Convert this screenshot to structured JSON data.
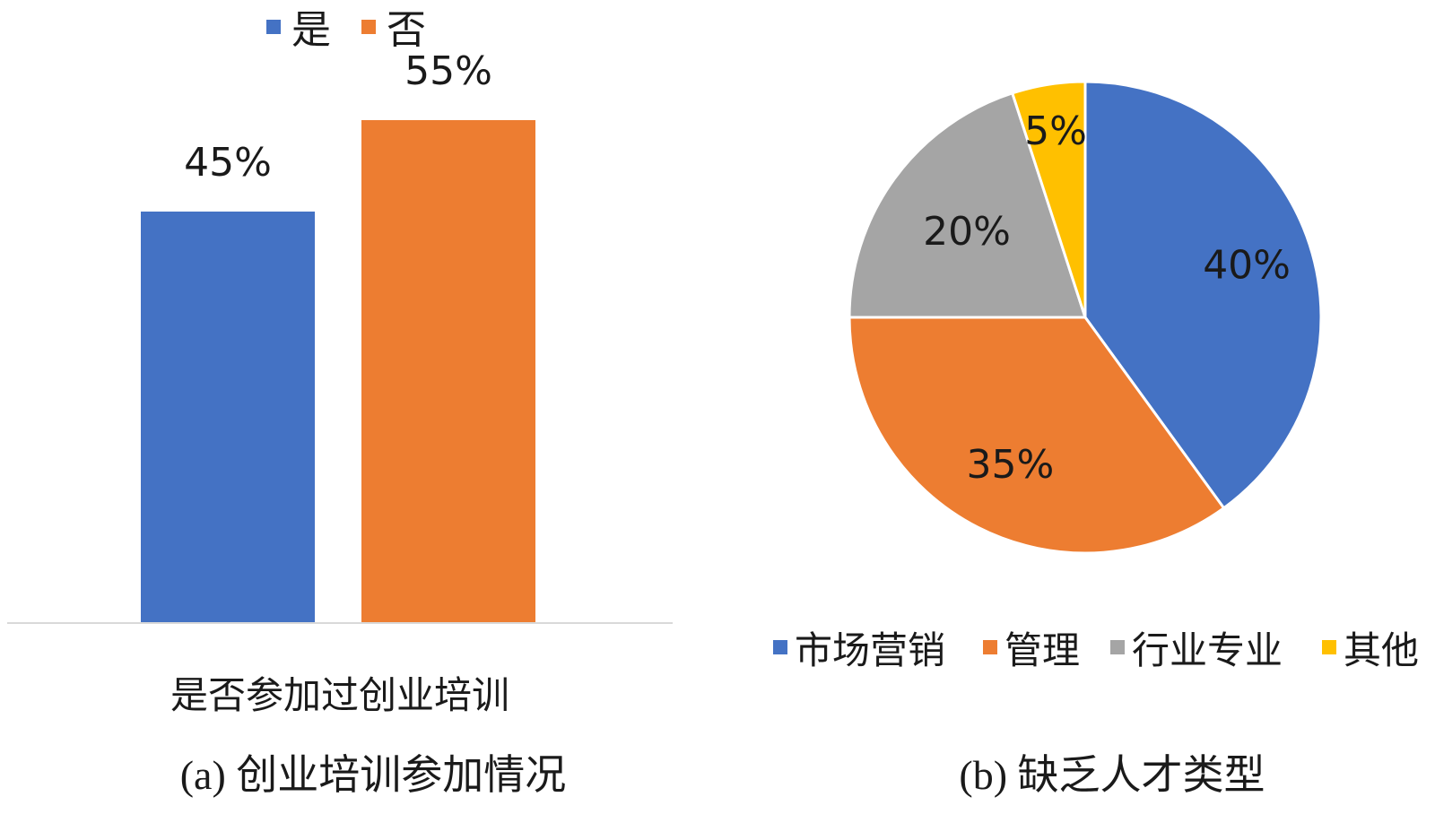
{
  "chart_data": [
    {
      "type": "bar",
      "categories": [
        "是否参加过创业培训"
      ],
      "series": [
        {
          "name": "是",
          "values": [
            45
          ],
          "label": "45%",
          "color": "#4472C4"
        },
        {
          "name": "否",
          "values": [
            55
          ],
          "label": "55%",
          "color": "#ED7D31"
        }
      ],
      "xlabel": "是否参加过创业培训",
      "caption": "(a) 创业培训参加情况",
      "legend_position": "top",
      "grid": false,
      "ylim": [
        0,
        55
      ]
    },
    {
      "type": "pie",
      "slices": [
        {
          "name": "市场营销",
          "value": 40,
          "label": "40%",
          "color": "#4472C4"
        },
        {
          "name": "管理",
          "value": 35,
          "label": "35%",
          "color": "#ED7D31"
        },
        {
          "name": "行业专业",
          "value": 20,
          "label": "20%",
          "color": "#A5A5A5"
        },
        {
          "name": "其他",
          "value": 5,
          "label": "5%",
          "color": "#FFC000"
        }
      ],
      "caption": "(b) 缺乏人才类型",
      "legend_position": "bottom",
      "start_angle": "12 o'clock",
      "direction": "clockwise"
    }
  ]
}
